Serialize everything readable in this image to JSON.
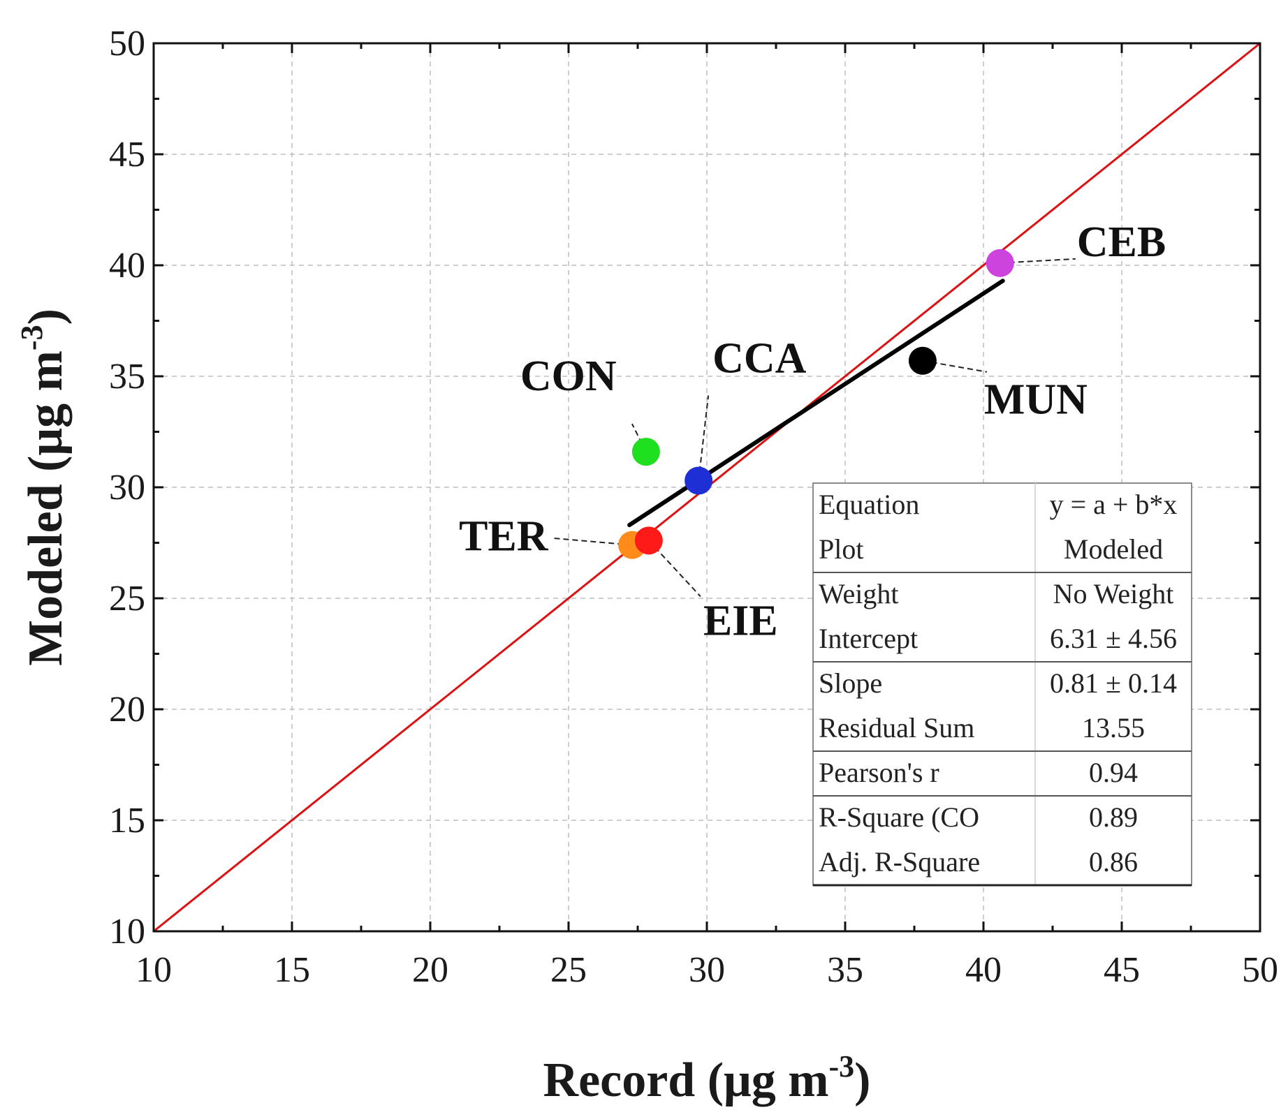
{
  "chart_data": {
    "type": "scatter",
    "xlabel": "Record (μg m",
    "ylabel": "Modeled (μg m",
    "unit_superscript": "-3",
    "unit_close": ")",
    "xlim": [
      10,
      50
    ],
    "ylim": [
      10,
      50
    ],
    "x_major_ticks": [
      10,
      15,
      20,
      25,
      30,
      35,
      40,
      45,
      50
    ],
    "y_major_ticks": [
      10,
      15,
      20,
      25,
      30,
      35,
      40,
      45,
      50
    ],
    "grid": true,
    "points": [
      {
        "label": "CEB",
        "x": 40.6,
        "y": 40.1,
        "color": "#cc44dd"
      },
      {
        "label": "MUN",
        "x": 37.8,
        "y": 35.7,
        "color": "#000000"
      },
      {
        "label": "CCA",
        "x": 29.7,
        "y": 30.3,
        "color": "#1f2fd6"
      },
      {
        "label": "CON",
        "x": 27.8,
        "y": 31.6,
        "color": "#1fe01f"
      },
      {
        "label": "TER",
        "x": 27.3,
        "y": 27.4,
        "color": "#ff8c1a"
      },
      {
        "label": "EIE",
        "x": 27.9,
        "y": 27.6,
        "color": "#ff1a1a"
      }
    ],
    "reference_line": {
      "name": "1:1 line",
      "x": [
        10,
        50
      ],
      "y": [
        10,
        50
      ],
      "color": "#dd1111"
    },
    "fit_line": {
      "name": "Linear fit",
      "x": [
        27.2,
        40.7
      ],
      "y": [
        28.3,
        39.3
      ],
      "color": "#000000"
    },
    "stats_table": [
      {
        "key": "Equation",
        "value": "y = a + b*x"
      },
      {
        "key": "Plot",
        "value": "Modeled"
      },
      {
        "key": "Weight",
        "value": "No Weight"
      },
      {
        "key": "Intercept",
        "value": "6.31 ± 4.56"
      },
      {
        "key": "Slope",
        "value": "0.81 ± 0.14"
      },
      {
        "key": "Residual Sum",
        "value": "13.55"
      },
      {
        "key": "Pearson's r",
        "value": "0.94"
      },
      {
        "key": "R-Square (CO",
        "value": "0.89"
      },
      {
        "key": "Adj. R-Square",
        "value": "0.86"
      }
    ]
  }
}
